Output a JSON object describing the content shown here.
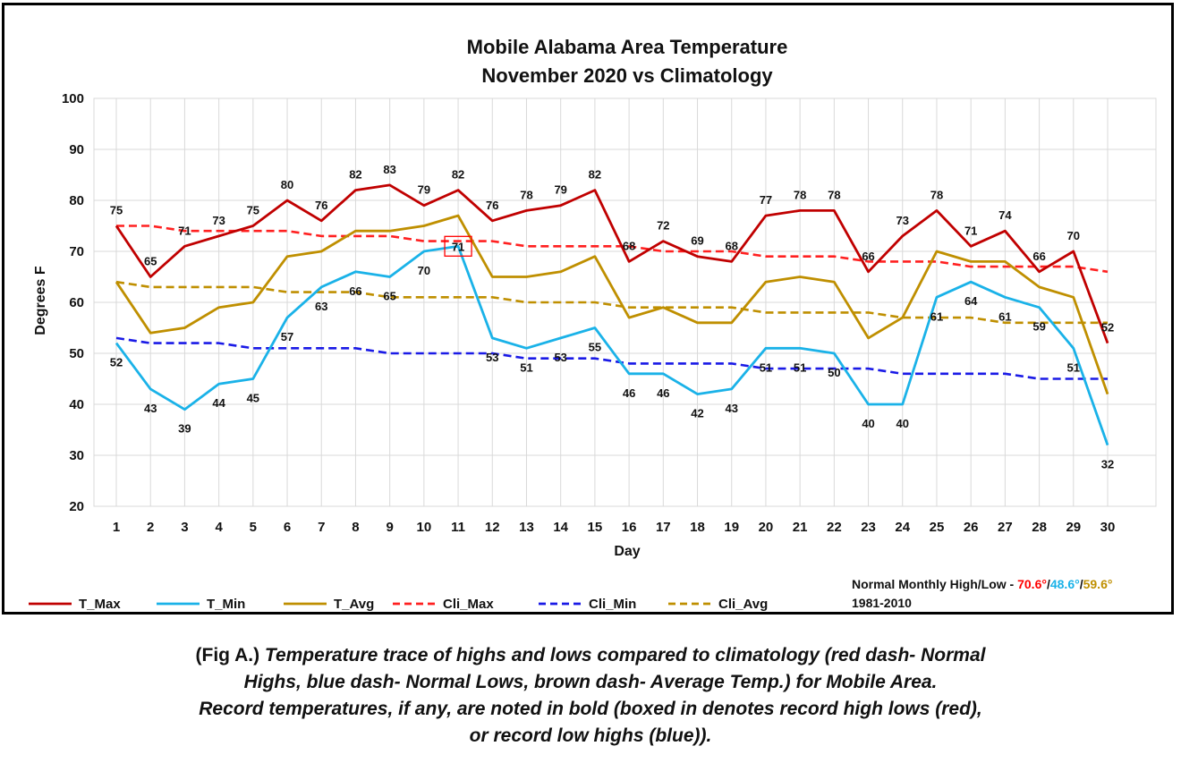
{
  "chart_data": {
    "type": "line",
    "title": "Mobile Alabama Area Temperature",
    "subtitle": "November 2020 vs Climatology",
    "xlabel": "Day",
    "ylabel": "Degrees F",
    "ylim": [
      20,
      100
    ],
    "yticks": [
      20,
      30,
      40,
      50,
      60,
      70,
      80,
      90,
      100
    ],
    "grid": true,
    "legend_position": "bottom",
    "x": [
      1,
      2,
      3,
      4,
      5,
      6,
      7,
      8,
      9,
      10,
      11,
      12,
      13,
      14,
      15,
      16,
      17,
      18,
      19,
      20,
      21,
      22,
      23,
      24,
      25,
      26,
      27,
      28,
      29,
      30
    ],
    "series": [
      {
        "name": "T_Max",
        "color": "#c00000",
        "dash": false,
        "labels": true,
        "label_pos": "above",
        "values": [
          75,
          65,
          71,
          73,
          75,
          80,
          76,
          82,
          83,
          79,
          82,
          76,
          78,
          79,
          82,
          68,
          72,
          69,
          68,
          77,
          78,
          78,
          66,
          73,
          78,
          71,
          74,
          66,
          70,
          52
        ]
      },
      {
        "name": "T_Min",
        "color": "#1ab2e8",
        "dash": false,
        "labels": true,
        "label_pos": "below",
        "values": [
          52,
          43,
          39,
          44,
          45,
          57,
          63,
          66,
          65,
          70,
          71,
          53,
          51,
          53,
          55,
          46,
          46,
          42,
          43,
          51,
          51,
          50,
          40,
          40,
          61,
          64,
          61,
          59,
          51,
          32
        ]
      },
      {
        "name": "T_Avg",
        "color": "#bf8f00",
        "dash": false,
        "labels": false,
        "values": [
          64,
          54,
          55,
          59,
          60,
          69,
          70,
          74,
          74,
          75,
          77,
          65,
          65,
          66,
          69,
          57,
          59,
          56,
          56,
          64,
          65,
          64,
          53,
          57,
          70,
          68,
          68,
          63,
          61,
          42
        ]
      },
      {
        "name": "Cli_Max",
        "color": "#ff2020",
        "dash": true,
        "labels": false,
        "values": [
          75,
          75,
          74,
          74,
          74,
          74,
          73,
          73,
          73,
          72,
          72,
          72,
          71,
          71,
          71,
          71,
          70,
          70,
          70,
          69,
          69,
          69,
          68,
          68,
          68,
          67,
          67,
          67,
          67,
          66
        ]
      },
      {
        "name": "Cli_Min",
        "color": "#1a1ae6",
        "dash": true,
        "labels": false,
        "values": [
          53,
          52,
          52,
          52,
          51,
          51,
          51,
          51,
          50,
          50,
          50,
          50,
          49,
          49,
          49,
          48,
          48,
          48,
          48,
          47,
          47,
          47,
          47,
          46,
          46,
          46,
          46,
          45,
          45,
          45
        ]
      },
      {
        "name": "Cli_Avg",
        "color": "#bf8f00",
        "dash": true,
        "labels": false,
        "values": [
          64,
          63,
          63,
          63,
          63,
          62,
          62,
          62,
          61,
          61,
          61,
          61,
          60,
          60,
          60,
          59,
          59,
          59,
          59,
          58,
          58,
          58,
          58,
          57,
          57,
          57,
          56,
          56,
          56,
          56
        ]
      }
    ],
    "records": [
      {
        "series": "T_Max",
        "day": 9,
        "value": 83,
        "color": "#ff0000",
        "boxed": false
      },
      {
        "series": "T_Min",
        "day": 11,
        "value": 71,
        "color": "#1a3adb",
        "boxed": true,
        "box_color": "#ff0000"
      }
    ],
    "normals": {
      "label": "Normal Monthly High/Low - ",
      "high": "70.6°",
      "low": "48.6°",
      "avg": "59.6°",
      "high_color": "#ff0000",
      "low_color": "#1ab2e8",
      "avg_color": "#bf8f00",
      "period": "1981-2010"
    }
  },
  "caption": {
    "prefix": "(Fig A.) ",
    "line1": "Temperature trace of highs and lows compared to climatology (red dash- Normal",
    "line2": "Highs, blue dash- Normal Lows, brown dash- Average Temp.) for Mobile Area.",
    "line3": "Record temperatures, if any, are noted in bold (boxed in denotes record high lows (red),",
    "line4": "or record low highs (blue))."
  }
}
